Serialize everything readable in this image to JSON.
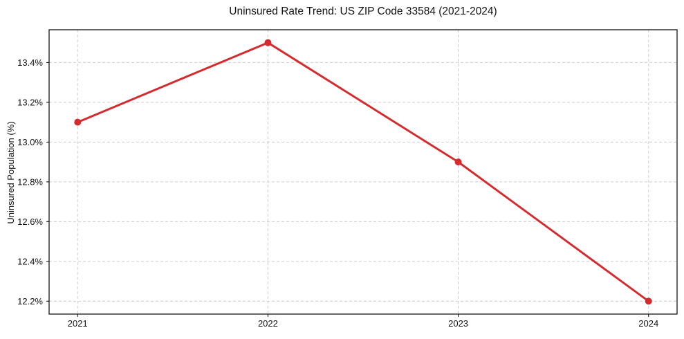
{
  "chart_data": {
    "type": "line",
    "title": "Uninsured Rate Trend: US ZIP Code 33584 (2021-2024)",
    "xlabel": "",
    "ylabel": "Uninsured Population (%)",
    "x": [
      2021,
      2022,
      2023,
      2024
    ],
    "series": [
      {
        "name": "Uninsured Population (%)",
        "values": [
          13.1,
          13.5,
          12.9,
          12.2
        ],
        "color": "#d62b2e",
        "marker": "circle"
      }
    ],
    "x_ticks": [
      {
        "value": 2021,
        "label": "2021"
      },
      {
        "value": 2022,
        "label": "2022"
      },
      {
        "value": 2023,
        "label": "2023"
      },
      {
        "value": 2024,
        "label": "2024"
      }
    ],
    "y_ticks": [
      {
        "value": 12.2,
        "label": "12.2%"
      },
      {
        "value": 12.4,
        "label": "12.4%"
      },
      {
        "value": 12.6,
        "label": "12.6%"
      },
      {
        "value": 12.8,
        "label": "12.8%"
      },
      {
        "value": 13.0,
        "label": "13.0%"
      },
      {
        "value": 13.2,
        "label": "13.2%"
      },
      {
        "value": 13.4,
        "label": "13.4%"
      }
    ],
    "xlim": [
      2020.85,
      2024.15
    ],
    "ylim": [
      12.135,
      13.565
    ],
    "grid": true,
    "grid_style": "dashed",
    "grid_color": "#cccccc",
    "axis_color": "#000000",
    "background_color": "#ffffff",
    "legend": false
  }
}
